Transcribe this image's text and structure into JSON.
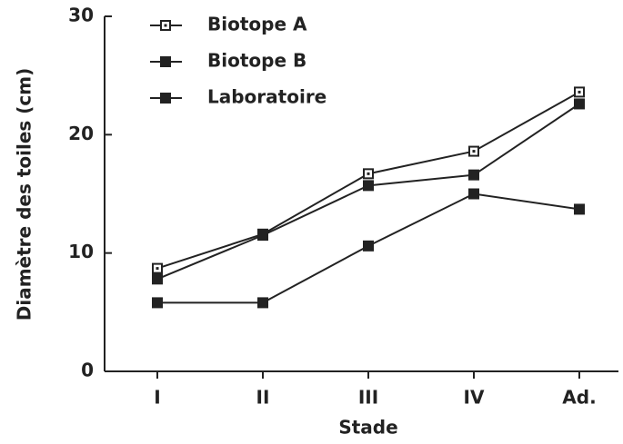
{
  "chart_data": {
    "type": "line",
    "x_label": "Stade",
    "y_label": "Diamètre des toiles (cm)",
    "categories": [
      "I",
      "II",
      "III",
      "IV",
      "Ad."
    ],
    "series": [
      {
        "name": "Biotope A",
        "color": "#222222",
        "marker": "open-square",
        "values": [
          8.7,
          11.6,
          16.7,
          18.6,
          23.6
        ]
      },
      {
        "name": "Biotope B",
        "color": "#222222",
        "marker": "filled-square",
        "values": [
          7.8,
          11.5,
          15.7,
          16.6,
          22.6
        ]
      },
      {
        "name": "Laboratoire",
        "color": "#222222",
        "marker": "filled-square",
        "values": [
          5.8,
          5.8,
          10.6,
          15.0,
          13.7
        ]
      }
    ],
    "ylim": [
      0,
      30
    ],
    "yticks": [
      0,
      10,
      20,
      30
    ],
    "legend": "upper left"
  }
}
